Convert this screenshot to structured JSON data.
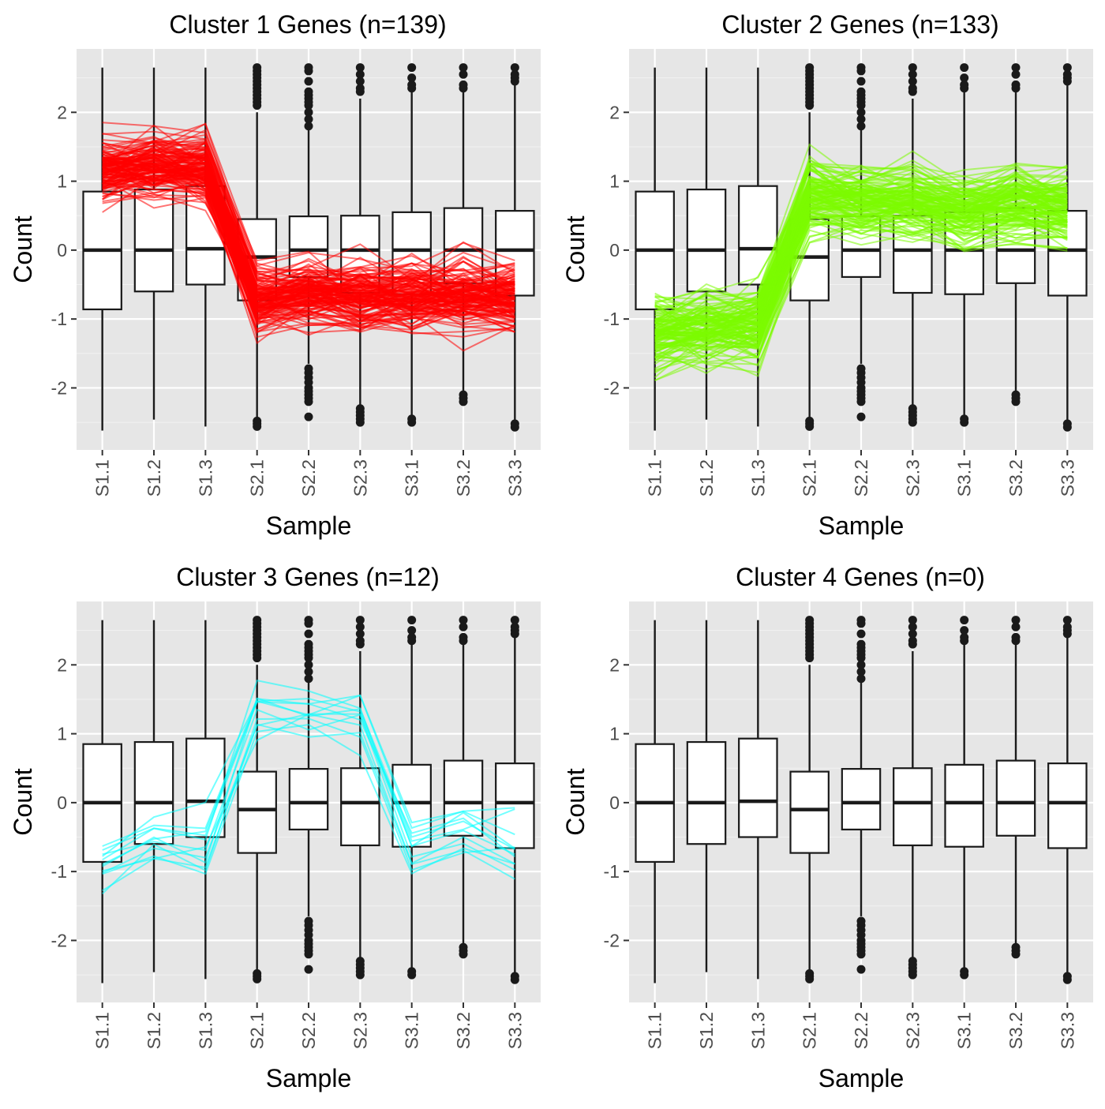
{
  "chart_data": [
    {
      "type": "box",
      "title": "Cluster 1 Genes (n=139)",
      "xlabel": "Sample",
      "ylabel": "Count",
      "line_color": "#ff0000",
      "line_count": 139,
      "profile": [
        1.15,
        1.22,
        1.18,
        -0.72,
        -0.62,
        -0.66,
        -0.66,
        -0.62,
        -0.68
      ],
      "spread": 0.3,
      "categories": [
        "S1.1",
        "S1.2",
        "S1.3",
        "S2.1",
        "S2.2",
        "S2.3",
        "S3.1",
        "S3.2",
        "S3.3"
      ],
      "y_ticks": [
        "-2",
        "-1",
        "0",
        "1",
        "2"
      ]
    },
    {
      "type": "box",
      "title": "Cluster 2 Genes (n=133)",
      "xlabel": "Sample",
      "ylabel": "Count",
      "line_color": "#7cfc00",
      "line_count": 133,
      "profile": [
        -1.2,
        -1.1,
        -1.08,
        0.78,
        0.72,
        0.72,
        0.6,
        0.68,
        0.62
      ],
      "spread": 0.32,
      "categories": [
        "S1.1",
        "S1.2",
        "S1.3",
        "S2.1",
        "S2.2",
        "S2.3",
        "S3.1",
        "S3.2",
        "S3.3"
      ],
      "y_ticks": [
        "-2",
        "-1",
        "0",
        "1",
        "2"
      ]
    },
    {
      "type": "box",
      "title": "Cluster 3 Genes (n=12)",
      "xlabel": "Sample",
      "ylabel": "Count",
      "line_color": "#00ffff",
      "line_count": 12,
      "profile": [
        -0.9,
        -0.55,
        -0.6,
        1.3,
        1.3,
        1.35,
        -0.6,
        -0.35,
        -0.55
      ],
      "spread": 0.3,
      "categories": [
        "S1.1",
        "S1.2",
        "S1.3",
        "S2.1",
        "S2.2",
        "S2.3",
        "S3.1",
        "S3.2",
        "S3.3"
      ],
      "y_ticks": [
        "-2",
        "-1",
        "0",
        "1",
        "2"
      ]
    },
    {
      "type": "box",
      "title": "Cluster 4 Genes (n=0)",
      "xlabel": "Sample",
      "ylabel": "Count",
      "line_color": "#c77cff",
      "line_count": 0,
      "profile": [],
      "spread": 0,
      "categories": [
        "S1.1",
        "S1.2",
        "S1.3",
        "S2.1",
        "S2.2",
        "S2.3",
        "S3.1",
        "S3.2",
        "S3.3"
      ],
      "y_ticks": [
        "-2",
        "-1",
        "0",
        "1",
        "2"
      ]
    }
  ],
  "boxes": [
    {
      "q1": -0.86,
      "median": 0.0,
      "q3": 0.85,
      "lower": -2.62,
      "upper": 2.65,
      "out_hi": [],
      "out_lo": []
    },
    {
      "q1": -0.6,
      "median": 0.0,
      "q3": 0.88,
      "lower": -2.46,
      "upper": 2.65,
      "out_hi": [],
      "out_lo": []
    },
    {
      "q1": -0.5,
      "median": 0.02,
      "q3": 0.93,
      "lower": -2.56,
      "upper": 2.65,
      "out_hi": [],
      "out_lo": []
    },
    {
      "q1": -0.73,
      "median": -0.1,
      "q3": 0.45,
      "lower": -2.45,
      "upper": 2.0,
      "out_hi": [
        2.1,
        2.15,
        2.2,
        2.25,
        2.3,
        2.35,
        2.4,
        2.45,
        2.5,
        2.55,
        2.6,
        2.65
      ],
      "out_lo": [
        -2.48,
        -2.52,
        -2.56
      ]
    },
    {
      "q1": -0.39,
      "median": 0.0,
      "q3": 0.49,
      "lower": -1.65,
      "upper": 1.8,
      "out_hi": [
        1.8,
        1.9,
        2.0,
        2.1,
        2.15,
        2.2,
        2.25,
        2.3,
        2.45,
        2.6,
        2.65
      ],
      "out_lo": [
        -1.72,
        -1.78,
        -1.85,
        -1.92,
        -2.0,
        -2.05,
        -2.1,
        -2.15,
        -2.2,
        -2.42
      ]
    },
    {
      "q1": -0.62,
      "median": 0.0,
      "q3": 0.5,
      "lower": -2.25,
      "upper": 2.2,
      "out_hi": [
        2.3,
        2.35,
        2.45,
        2.55,
        2.65
      ],
      "out_lo": [
        -2.3,
        -2.35,
        -2.4,
        -2.45,
        -2.5
      ]
    },
    {
      "q1": -0.64,
      "median": 0.0,
      "q3": 0.55,
      "lower": -2.42,
      "upper": 2.3,
      "out_hi": [
        2.35,
        2.4,
        2.5,
        2.65
      ],
      "out_lo": [
        -2.45,
        -2.5
      ]
    },
    {
      "q1": -0.48,
      "median": 0.0,
      "q3": 0.61,
      "lower": -2.08,
      "upper": 2.3,
      "out_hi": [
        2.35,
        2.4,
        2.55,
        2.65
      ],
      "out_lo": [
        -2.1,
        -2.15,
        -2.2
      ]
    },
    {
      "q1": -0.66,
      "median": 0.0,
      "q3": 0.57,
      "lower": -2.5,
      "upper": 2.4,
      "out_hi": [
        2.45,
        2.5,
        2.55,
        2.65
      ],
      "out_lo": [
        -2.52,
        -2.57
      ]
    }
  ]
}
